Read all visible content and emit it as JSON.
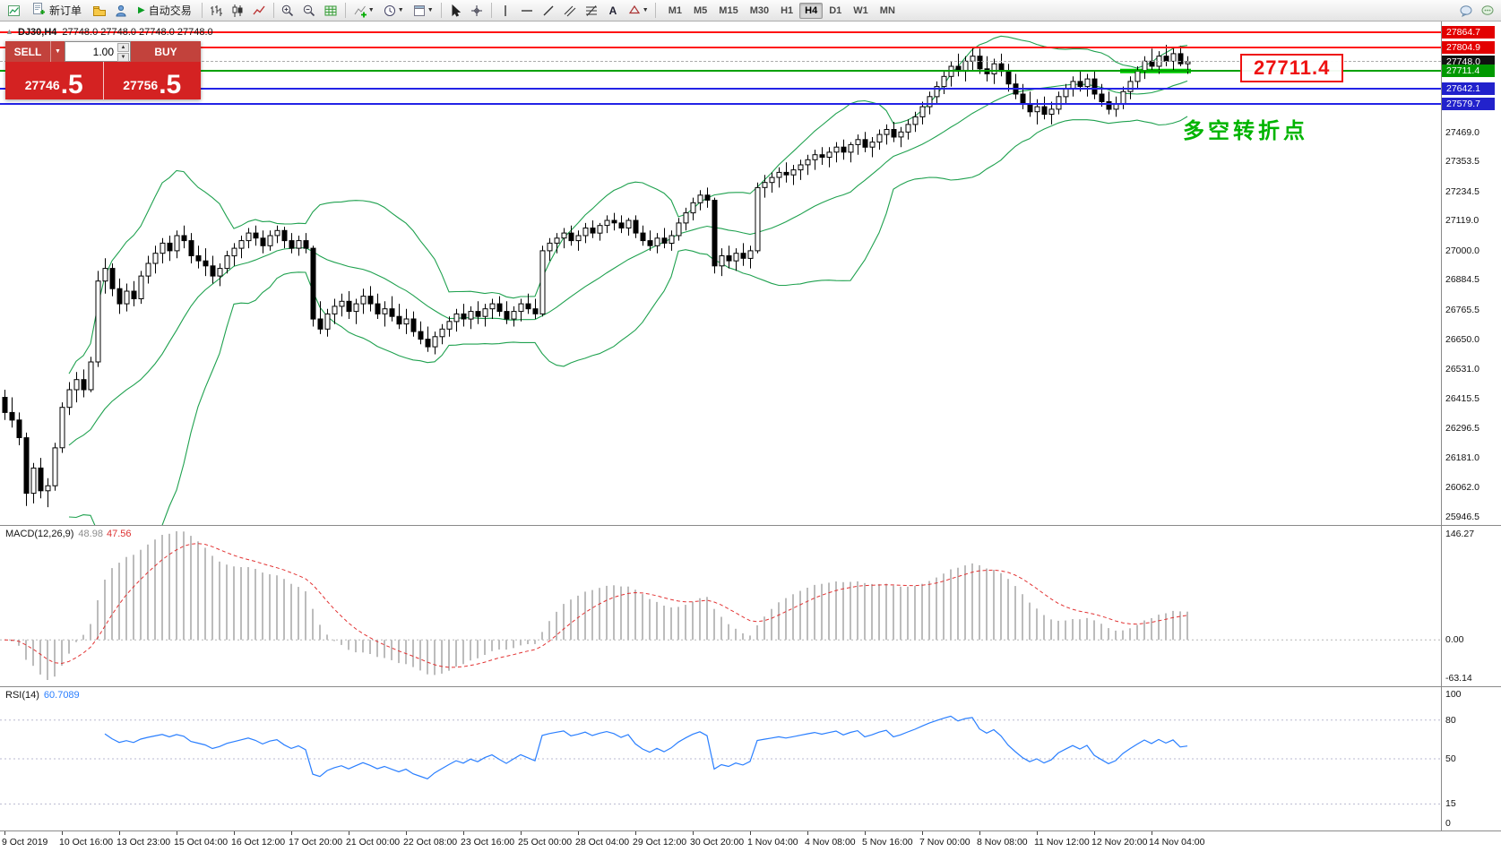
{
  "toolbar": {
    "new_order_label": "新订单",
    "autotrade_label": "自动交易",
    "timeframes": [
      "M1",
      "M5",
      "M15",
      "M30",
      "H1",
      "H4",
      "D1",
      "W1",
      "MN"
    ],
    "active_timeframe": "H4"
  },
  "trade_panel": {
    "sell_label": "SELL",
    "buy_label": "BUY",
    "volume_value": "1.00",
    "sell_price_main": "27746",
    "sell_price_frac": ".5",
    "buy_price_main": "27756",
    "buy_price_frac": ".5"
  },
  "chart": {
    "symbol_title": "DJ30,H4",
    "ohlc_text": "27748.0 27748.0 27748.0 27748.0",
    "annotation": "多空转折点",
    "price_callout": "27711.4",
    "levels": [
      {
        "price": 27864.7,
        "color": "#ff1414",
        "tag_bg": "#e30000"
      },
      {
        "price": 27804.9,
        "color": "#ff1414",
        "tag_bg": "#e30000"
      },
      {
        "price": 27748.0,
        "color": "#9a9a9a",
        "tag_bg": "#111111",
        "style": "current"
      },
      {
        "price": 27711.4,
        "color": "#00a000",
        "tag_bg": "#009900"
      },
      {
        "price": 27642.1,
        "color": "#2323e6",
        "tag_bg": "#2222cc"
      },
      {
        "price": 27579.7,
        "color": "#2323e6",
        "tag_bg": "#2222cc"
      }
    ],
    "highlight": {
      "price": 27711.4,
      "from_bar": 156,
      "to_bar": 165,
      "color": "#00ce00"
    },
    "axis_prices": [
      27864.7,
      27804.9,
      27748.0,
      27711.4,
      27642.1,
      27579.7,
      27469.0,
      27353.5,
      27234.5,
      27119.0,
      27000.0,
      26884.5,
      26765.5,
      26650.0,
      26531.0,
      26415.5,
      26296.5,
      26181.0,
      26062.0,
      25946.5
    ]
  },
  "macd": {
    "label": "MACD(12,26,9)",
    "value_main": "48.98",
    "value_signal": "47.56",
    "axis_labels": [
      "146.27",
      "0.00",
      "-63.14"
    ]
  },
  "rsi": {
    "label": "RSI(14)",
    "value": "60.7089",
    "axis_labels": [
      100,
      80,
      50,
      15,
      0
    ],
    "levels": [
      80,
      50,
      15
    ]
  },
  "time_axis": [
    "9 Oct 2019",
    "10 Oct 16:00",
    "13 Oct 23:00",
    "15 Oct 04:00",
    "16 Oct 12:00",
    "17 Oct 20:00",
    "21 Oct 00:00",
    "22 Oct 08:00",
    "23 Oct 16:00",
    "25 Oct 00:00",
    "28 Oct 04:00",
    "29 Oct 12:00",
    "30 Oct 20:00",
    "1 Nov 04:00",
    "4 Nov 08:00",
    "5 Nov 16:00",
    "7 Nov 00:00",
    "8 Nov 08:00",
    "11 Nov 12:00",
    "12 Nov 20:00",
    "14 Nov 04:00"
  ],
  "chart_data": {
    "type": "candlestick",
    "symbol": "DJ30",
    "timeframe": "H4",
    "title": "DJ30,H4",
    "ylim": [
      25946.5,
      27864.7
    ],
    "indicators": {
      "bollinger": {
        "period": 20,
        "deviation": 2
      },
      "macd": {
        "fast": 12,
        "slow": 26,
        "signal": 9
      },
      "rsi": {
        "period": 14
      }
    },
    "ohlc": [
      [
        26420,
        26450,
        26330,
        26360
      ],
      [
        26360,
        26420,
        26300,
        26330
      ],
      [
        26330,
        26360,
        26230,
        26260
      ],
      [
        26260,
        26280,
        25990,
        26040
      ],
      [
        26040,
        26160,
        26000,
        26140
      ],
      [
        26140,
        26180,
        26020,
        26050
      ],
      [
        26050,
        26100,
        25985,
        26070
      ],
      [
        26070,
        26240,
        26050,
        26220
      ],
      [
        26220,
        26400,
        26200,
        26380
      ],
      [
        26380,
        26480,
        26350,
        26450
      ],
      [
        26450,
        26520,
        26400,
        26490
      ],
      [
        26490,
        26530,
        26420,
        26450
      ],
      [
        26450,
        26580,
        26440,
        26560
      ],
      [
        26560,
        26920,
        26540,
        26880
      ],
      [
        26880,
        26970,
        26830,
        26930
      ],
      [
        26930,
        26950,
        26820,
        26850
      ],
      [
        26850,
        26890,
        26750,
        26790
      ],
      [
        26790,
        26870,
        26760,
        26840
      ],
      [
        26840,
        26880,
        26780,
        26810
      ],
      [
        26810,
        26920,
        26790,
        26900
      ],
      [
        26900,
        26980,
        26870,
        26950
      ],
      [
        26950,
        27020,
        26910,
        26990
      ],
      [
        26990,
        27050,
        26950,
        27030
      ],
      [
        27030,
        27060,
        26960,
        27000
      ],
      [
        27000,
        27080,
        26970,
        27060
      ],
      [
        27060,
        27100,
        27010,
        27040
      ],
      [
        27040,
        27070,
        26950,
        26980
      ],
      [
        26980,
        27020,
        26930,
        26960
      ],
      [
        26960,
        27010,
        26900,
        26940
      ],
      [
        26940,
        26980,
        26870,
        26900
      ],
      [
        26900,
        26950,
        26860,
        26930
      ],
      [
        26930,
        27000,
        26910,
        26980
      ],
      [
        26980,
        27030,
        26940,
        27010
      ],
      [
        27010,
        27060,
        26970,
        27040
      ],
      [
        27040,
        27090,
        27010,
        27070
      ],
      [
        27070,
        27100,
        27020,
        27050
      ],
      [
        27050,
        27080,
        26990,
        27020
      ],
      [
        27020,
        27080,
        27000,
        27060
      ],
      [
        27060,
        27100,
        27030,
        27080
      ],
      [
        27080,
        27095,
        27010,
        27040
      ],
      [
        27040,
        27070,
        26990,
        27010
      ],
      [
        27010,
        27060,
        26980,
        27040
      ],
      [
        27040,
        27070,
        26990,
        27010
      ],
      [
        27010,
        27020,
        26700,
        26730
      ],
      [
        26730,
        26800,
        26670,
        26690
      ],
      [
        26690,
        26770,
        26660,
        26750
      ],
      [
        26750,
        26810,
        26710,
        26780
      ],
      [
        26780,
        26830,
        26740,
        26800
      ],
      [
        26800,
        26840,
        26730,
        26760
      ],
      [
        26760,
        26810,
        26710,
        26790
      ],
      [
        26790,
        26850,
        26750,
        26820
      ],
      [
        26820,
        26860,
        26760,
        26790
      ],
      [
        26790,
        26830,
        26730,
        26750
      ],
      [
        26750,
        26800,
        26700,
        26770
      ],
      [
        26770,
        26820,
        26720,
        26740
      ],
      [
        26740,
        26790,
        26690,
        26710
      ],
      [
        26710,
        26770,
        26670,
        26730
      ],
      [
        26730,
        26760,
        26660,
        26680
      ],
      [
        26680,
        26720,
        26630,
        26650
      ],
      [
        26650,
        26700,
        26600,
        26620
      ],
      [
        26620,
        26680,
        26590,
        26660
      ],
      [
        26660,
        26710,
        26630,
        26690
      ],
      [
        26690,
        26740,
        26660,
        26720
      ],
      [
        26720,
        26770,
        26680,
        26750
      ],
      [
        26750,
        26790,
        26700,
        26730
      ],
      [
        26730,
        26780,
        26690,
        26760
      ],
      [
        26760,
        26800,
        26710,
        26740
      ],
      [
        26740,
        26790,
        26700,
        26770
      ],
      [
        26770,
        26810,
        26730,
        26790
      ],
      [
        26790,
        26820,
        26740,
        26760
      ],
      [
        26760,
        26800,
        26710,
        26730
      ],
      [
        26730,
        26780,
        26700,
        26760
      ],
      [
        26760,
        26810,
        26720,
        26790
      ],
      [
        26790,
        26830,
        26750,
        26770
      ],
      [
        26770,
        26810,
        26730,
        26750
      ],
      [
        26750,
        27020,
        26740,
        27000
      ],
      [
        27000,
        27050,
        26960,
        27030
      ],
      [
        27030,
        27070,
        26990,
        27050
      ],
      [
        27050,
        27090,
        27010,
        27070
      ],
      [
        27070,
        27100,
        27020,
        27040
      ],
      [
        27040,
        27080,
        27000,
        27060
      ],
      [
        27060,
        27110,
        27030,
        27090
      ],
      [
        27090,
        27120,
        27050,
        27070
      ],
      [
        27070,
        27110,
        27040,
        27100
      ],
      [
        27100,
        27140,
        27070,
        27120
      ],
      [
        27120,
        27150,
        27080,
        27110
      ],
      [
        27110,
        27140,
        27070,
        27090
      ],
      [
        27090,
        27130,
        27060,
        27120
      ],
      [
        27120,
        27140,
        27050,
        27070
      ],
      [
        27070,
        27100,
        27020,
        27040
      ],
      [
        27040,
        27080,
        27000,
        27020
      ],
      [
        27020,
        27070,
        26990,
        27050
      ],
      [
        27050,
        27090,
        27010,
        27030
      ],
      [
        27030,
        27080,
        27000,
        27060
      ],
      [
        27060,
        27130,
        27040,
        27110
      ],
      [
        27110,
        27170,
        27080,
        27150
      ],
      [
        27150,
        27210,
        27120,
        27190
      ],
      [
        27190,
        27240,
        27160,
        27220
      ],
      [
        27220,
        27250,
        27170,
        27200
      ],
      [
        27200,
        27210,
        26910,
        26940
      ],
      [
        26940,
        27010,
        26900,
        26980
      ],
      [
        26980,
        27020,
        26930,
        26960
      ],
      [
        26960,
        27010,
        26920,
        26990
      ],
      [
        26990,
        27030,
        26940,
        26970
      ],
      [
        26970,
        27020,
        26930,
        27000
      ],
      [
        27000,
        27270,
        26990,
        27250
      ],
      [
        27250,
        27300,
        27210,
        27270
      ],
      [
        27270,
        27310,
        27230,
        27290
      ],
      [
        27290,
        27330,
        27250,
        27310
      ],
      [
        27310,
        27350,
        27270,
        27300
      ],
      [
        27300,
        27340,
        27260,
        27320
      ],
      [
        27320,
        27360,
        27280,
        27340
      ],
      [
        27340,
        27380,
        27300,
        27360
      ],
      [
        27360,
        27400,
        27320,
        27380
      ],
      [
        27380,
        27410,
        27340,
        27370
      ],
      [
        27370,
        27410,
        27330,
        27390
      ],
      [
        27390,
        27430,
        27350,
        27410
      ],
      [
        27410,
        27440,
        27360,
        27390
      ],
      [
        27390,
        27430,
        27350,
        27420
      ],
      [
        27420,
        27460,
        27380,
        27440
      ],
      [
        27440,
        27470,
        27390,
        27410
      ],
      [
        27410,
        27450,
        27370,
        27430
      ],
      [
        27430,
        27480,
        27400,
        27460
      ],
      [
        27460,
        27500,
        27420,
        27480
      ],
      [
        27480,
        27510,
        27430,
        27450
      ],
      [
        27450,
        27490,
        27410,
        27470
      ],
      [
        27470,
        27520,
        27440,
        27500
      ],
      [
        27500,
        27550,
        27470,
        27530
      ],
      [
        27530,
        27590,
        27500,
        27570
      ],
      [
        27570,
        27630,
        27540,
        27610
      ],
      [
        27610,
        27670,
        27580,
        27650
      ],
      [
        27650,
        27710,
        27620,
        27690
      ],
      [
        27690,
        27750,
        27650,
        27730
      ],
      [
        27730,
        27780,
        27690,
        27710
      ],
      [
        27710,
        27770,
        27670,
        27750
      ],
      [
        27750,
        27805,
        27710,
        27770
      ],
      [
        27770,
        27800,
        27700,
        27720
      ],
      [
        27720,
        27770,
        27670,
        27700
      ],
      [
        27700,
        27760,
        27660,
        27740
      ],
      [
        27740,
        27780,
        27690,
        27710
      ],
      [
        27710,
        27740,
        27630,
        27660
      ],
      [
        27660,
        27700,
        27600,
        27620
      ],
      [
        27620,
        27660,
        27560,
        27580
      ],
      [
        27580,
        27630,
        27530,
        27550
      ],
      [
        27550,
        27600,
        27500,
        27570
      ],
      [
        27570,
        27610,
        27520,
        27540
      ],
      [
        27540,
        27590,
        27500,
        27560
      ],
      [
        27560,
        27630,
        27540,
        27610
      ],
      [
        27610,
        27660,
        27580,
        27640
      ],
      [
        27640,
        27690,
        27610,
        27670
      ],
      [
        27670,
        27710,
        27630,
        27650
      ],
      [
        27650,
        27700,
        27610,
        27680
      ],
      [
        27680,
        27710,
        27600,
        27620
      ],
      [
        27620,
        27660,
        27570,
        27590
      ],
      [
        27590,
        27630,
        27540,
        27560
      ],
      [
        27560,
        27610,
        27530,
        27580
      ],
      [
        27580,
        27650,
        27560,
        27630
      ],
      [
        27630,
        27690,
        27600,
        27670
      ],
      [
        27670,
        27730,
        27640,
        27710
      ],
      [
        27710,
        27770,
        27680,
        27750
      ],
      [
        27750,
        27800,
        27710,
        27730
      ],
      [
        27730,
        27790,
        27700,
        27770
      ],
      [
        27770,
        27815,
        27730,
        27750
      ],
      [
        27750,
        27800,
        27710,
        27780
      ],
      [
        27780,
        27810,
        27730,
        27740
      ],
      [
        27740,
        27770,
        27700,
        27748
      ]
    ]
  }
}
